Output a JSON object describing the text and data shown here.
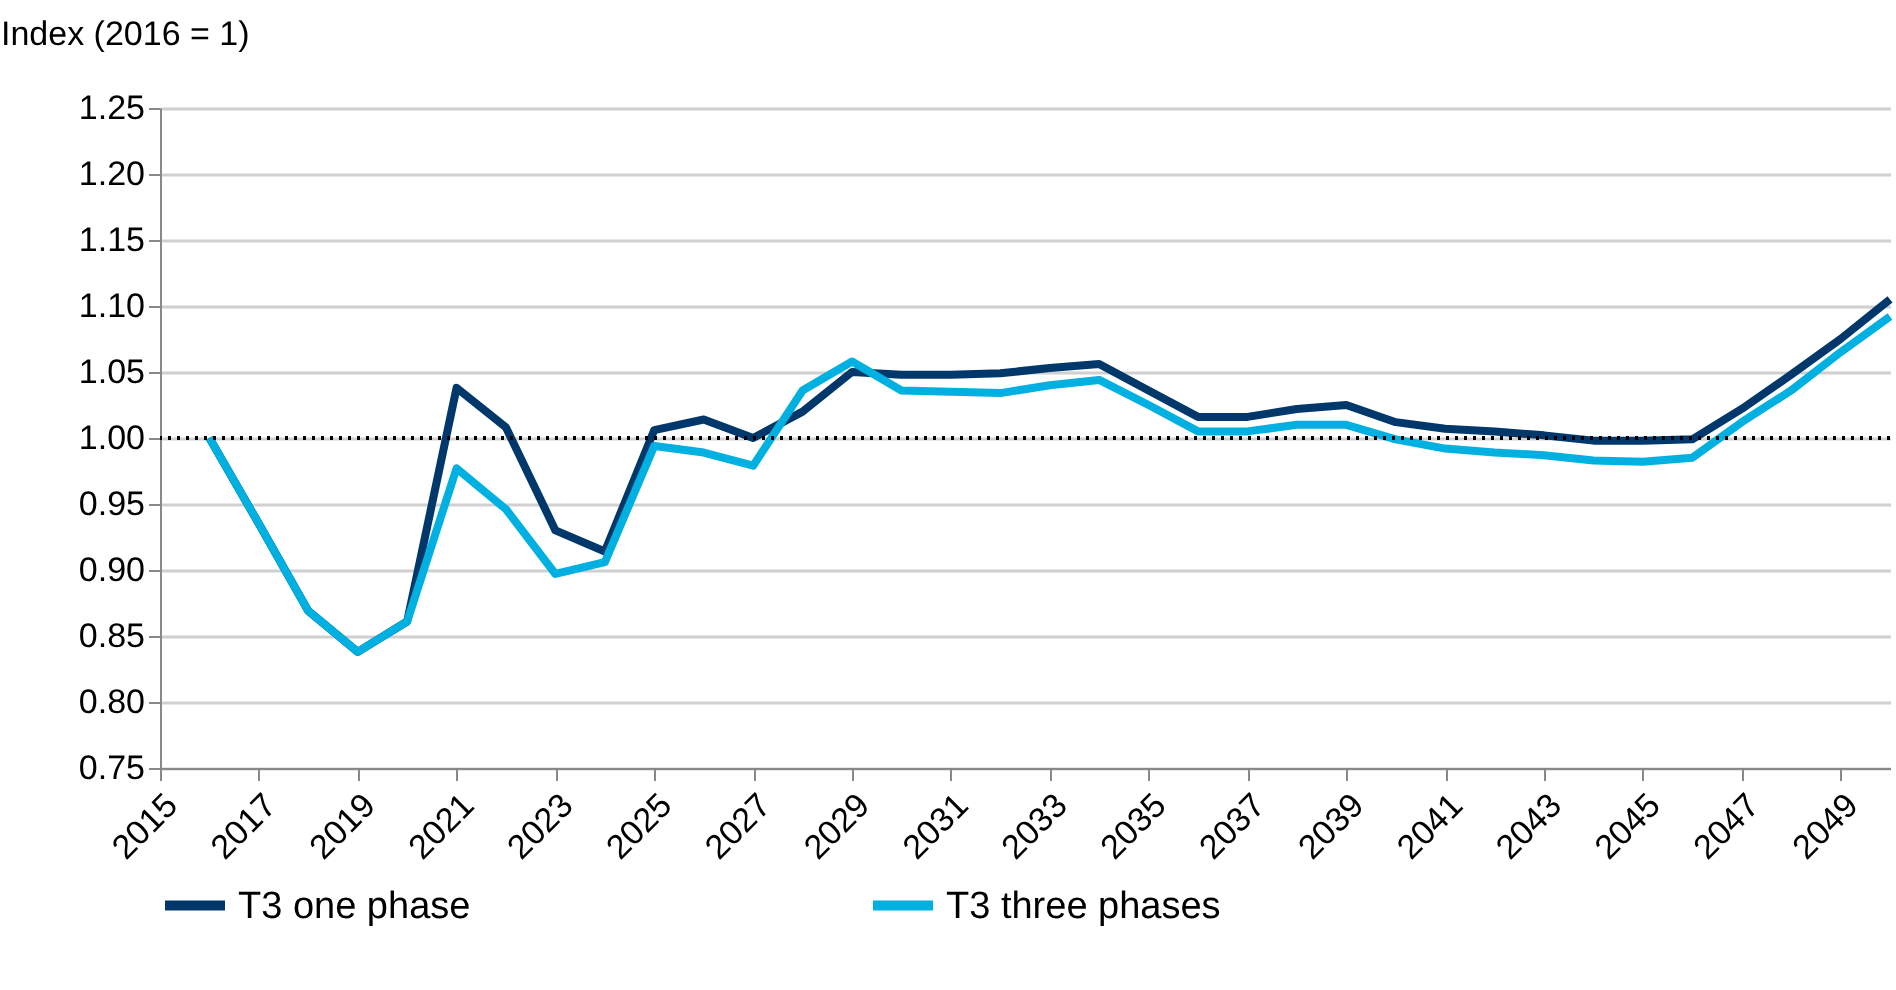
{
  "chart_data": {
    "type": "line",
    "ylabel": "Index (2016 = 1)",
    "x": [
      2016,
      2017,
      2018,
      2019,
      2020,
      2021,
      2022,
      2023,
      2024,
      2025,
      2026,
      2027,
      2028,
      2029,
      2030,
      2031,
      2032,
      2033,
      2034,
      2035,
      2036,
      2037,
      2038,
      2039,
      2040,
      2041,
      2042,
      2043,
      2044,
      2045,
      2046,
      2047,
      2048,
      2049,
      2050
    ],
    "series": [
      {
        "name": "T3 one phase",
        "color": "#00386b",
        "values": [
          1.0,
          0.935,
          0.869,
          0.838,
          0.861,
          1.038,
          1.008,
          0.93,
          0.914,
          1.006,
          1.014,
          1.0,
          1.02,
          1.05,
          1.048,
          1.048,
          1.049,
          1.053,
          1.056,
          1.036,
          1.016,
          1.016,
          1.022,
          1.025,
          1.012,
          1.007,
          1.005,
          1.002,
          0.998,
          0.998,
          0.999,
          1.022,
          1.048,
          1.075,
          1.105
        ]
      },
      {
        "name": "T3 three phases",
        "color": "#00b0e0",
        "values": [
          1.0,
          0.935,
          0.869,
          0.838,
          0.861,
          0.977,
          0.946,
          0.897,
          0.906,
          0.994,
          0.989,
          0.979,
          1.036,
          1.058,
          1.036,
          1.035,
          1.034,
          1.04,
          1.044,
          1.025,
          1.005,
          1.005,
          1.01,
          1.01,
          0.999,
          0.992,
          0.989,
          0.987,
          0.983,
          0.982,
          0.985,
          1.012,
          1.036,
          1.065,
          1.092
        ]
      }
    ],
    "xlim": [
      2015,
      2050
    ],
    "xticks": [
      2015,
      2017,
      2019,
      2021,
      2023,
      2025,
      2027,
      2029,
      2031,
      2033,
      2035,
      2037,
      2039,
      2041,
      2043,
      2045,
      2047,
      2049
    ],
    "ylim": [
      0.75,
      1.25
    ],
    "yticks": [
      {
        "value": 0.75,
        "label": "0.75"
      },
      {
        "value": 0.8,
        "label": "0.80"
      },
      {
        "value": 0.85,
        "label": "0.85"
      },
      {
        "value": 0.9,
        "label": "0.90"
      },
      {
        "value": 0.95,
        "label": "0.95"
      },
      {
        "value": 1.0,
        "label": "1.00"
      },
      {
        "value": 1.05,
        "label": "1.05"
      },
      {
        "value": 1.1,
        "label": "1.10"
      },
      {
        "value": 1.15,
        "label": "1.15"
      },
      {
        "value": 1.2,
        "label": "1.20"
      },
      {
        "value": 1.25,
        "label": "1.25"
      }
    ],
    "ref_lines": [
      {
        "axis": "y",
        "value": 1.0,
        "color": "#000000",
        "line_style": "dotted"
      }
    ],
    "grid": "y",
    "legend": "bottom",
    "marker": "none",
    "line_style": "solid"
  }
}
